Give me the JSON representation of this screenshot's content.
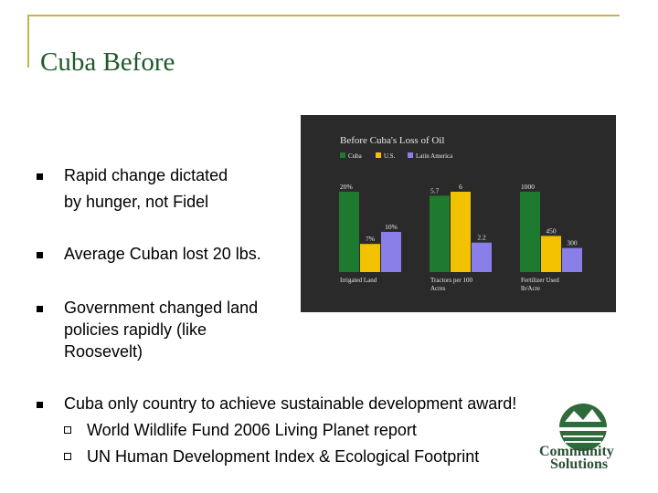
{
  "slide": {
    "title": "Cuba Before",
    "bullets": [
      {
        "line1": "Rapid change dictated",
        "line2": "by hunger, not Fidel"
      },
      {
        "line1": "Average Cuban lost 20 lbs."
      },
      {
        "line1": "Government changed land",
        "line2": "policies rapidly (like",
        "line3": "Roosevelt)"
      },
      {
        "line1": "Cuba only country to achieve sustainable development award!"
      }
    ],
    "subbullets": [
      "World Wildlife Fund 2006 Living Planet report",
      "UN Human Development Index & Ecological Footprint"
    ],
    "logo": {
      "line1": "Community",
      "line2": "Solutions"
    }
  },
  "chart_data": {
    "type": "bar",
    "title": "Before Cuba's Loss of Oil",
    "categories": [
      "Irrigated Land",
      "Tractors per 100 Acres",
      "Fertilizer Used lb/Acre"
    ],
    "category_lines": [
      [
        "Irrigated Land"
      ],
      [
        "Tractors per 100",
        "Acres"
      ],
      [
        "Fertilizer Used",
        "lb/Acre"
      ]
    ],
    "series": [
      {
        "name": "Cuba",
        "values": [
          20,
          5.7,
          1000
        ],
        "labels": [
          "20%",
          "5.7",
          "1000"
        ],
        "color": "#1e7a2e"
      },
      {
        "name": "U.S.",
        "values": [
          7,
          6,
          450
        ],
        "labels": [
          "7%",
          "6",
          "450"
        ],
        "color": "#f2c200"
      },
      {
        "name": "Latin America",
        "values": [
          10,
          2.2,
          300
        ],
        "labels": [
          "10%",
          "2.2",
          "300"
        ],
        "color": "#8a7fe8"
      }
    ],
    "group_max": [
      20,
      6,
      1000
    ],
    "colors": {
      "background": "#2a2a2a",
      "text": "#e8e8e8"
    }
  }
}
